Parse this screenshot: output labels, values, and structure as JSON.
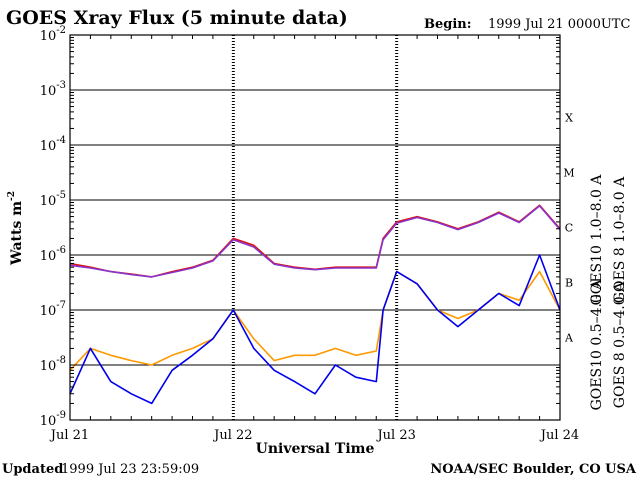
{
  "header": {
    "title": "GOES Xray Flux (5 minute data)",
    "begin_label": "Begin:",
    "begin_value": "1999 Jul 21 0000UTC"
  },
  "footer": {
    "updated_label": "Updated",
    "updated_value": "1999 Jul 23 23:59:09",
    "credit": "NOAA/SEC Boulder, CO USA"
  },
  "colors": {
    "goes8_long": "#dd1111",
    "goes10_long": "#8833cc",
    "goes10_short": "#ff9900",
    "goes8_short": "#0000ee",
    "grid": "#000000"
  },
  "chart_data": {
    "type": "line",
    "title": "GOES Xray Flux (5 minute data)",
    "xlabel": "Universal Time",
    "ylabel": "Watts m",
    "ylabel_exp": "-2",
    "yscale": "log",
    "ylim": [
      1e-09,
      0.01
    ],
    "xlim": [
      "1999-07-21T00:00",
      "1999-07-24T00:00"
    ],
    "x_ticks": [
      "Jul 21",
      "Jul 22",
      "Jul 23",
      "Jul 24"
    ],
    "y_ticks": [
      {
        "base": "10",
        "exp": "-9"
      },
      {
        "base": "10",
        "exp": "-8"
      },
      {
        "base": "10",
        "exp": "-7"
      },
      {
        "base": "10",
        "exp": "-6"
      },
      {
        "base": "10",
        "exp": "-5"
      },
      {
        "base": "10",
        "exp": "-4"
      },
      {
        "base": "10",
        "exp": "-3"
      },
      {
        "base": "10",
        "exp": "-2"
      }
    ],
    "flare_classes": [
      "X",
      "M",
      "C",
      "B",
      "A"
    ],
    "grid": true,
    "legend_position": "right",
    "legend": [
      "GOES10 1.0–8.0 A",
      "GOES 8 1.0–8.0 A",
      "GOES10 0.5–4.0 A",
      "GOES 8 0.5–4.0 A"
    ],
    "x": [
      "1999-07-21T00:00",
      "1999-07-21T03:00",
      "1999-07-21T06:00",
      "1999-07-21T09:00",
      "1999-07-21T12:00",
      "1999-07-21T15:00",
      "1999-07-21T18:00",
      "1999-07-21T21:00",
      "1999-07-22T00:00",
      "1999-07-22T03:00",
      "1999-07-22T06:00",
      "1999-07-22T09:00",
      "1999-07-22T12:00",
      "1999-07-22T15:00",
      "1999-07-22T18:00",
      "1999-07-22T21:00",
      "1999-07-22T22:00",
      "1999-07-23T00:00",
      "1999-07-23T03:00",
      "1999-07-23T06:00",
      "1999-07-23T09:00",
      "1999-07-23T12:00",
      "1999-07-23T15:00",
      "1999-07-23T18:00",
      "1999-07-23T21:00",
      "1999-07-24T00:00"
    ],
    "series": [
      {
        "name": "GOES 8 1.0–8.0 A",
        "color": "#dd1111",
        "values": [
          7e-07,
          6e-07,
          5e-07,
          4.5e-07,
          4e-07,
          5e-07,
          6e-07,
          8e-07,
          2e-06,
          1.5e-06,
          7e-07,
          6e-07,
          5.5e-07,
          6e-07,
          6e-07,
          6e-07,
          2e-06,
          4e-06,
          5e-06,
          4e-06,
          3e-06,
          4e-06,
          6e-06,
          4e-06,
          8e-06,
          3e-06
        ]
      },
      {
        "name": "GOES10 1.0–8.0 A",
        "color": "#8833cc",
        "values": [
          6.5e-07,
          5.8e-07,
          5e-07,
          4.4e-07,
          4e-07,
          4.8e-07,
          5.8e-07,
          7.8e-07,
          1.9e-06,
          1.4e-06,
          6.8e-07,
          5.8e-07,
          5.4e-07,
          5.8e-07,
          5.8e-07,
          5.8e-07,
          1.9e-06,
          3.8e-06,
          4.8e-06,
          3.9e-06,
          2.9e-06,
          3.9e-06,
          5.8e-06,
          3.9e-06,
          7.8e-06,
          2.9e-06
        ]
      },
      {
        "name": "GOES10 0.5–4.0 A",
        "color": "#ff9900",
        "values": [
          8e-09,
          2e-08,
          1.5e-08,
          1.2e-08,
          1e-08,
          1.5e-08,
          2e-08,
          3e-08,
          1e-07,
          3e-08,
          1.2e-08,
          1.5e-08,
          1.5e-08,
          2e-08,
          1.5e-08,
          1.8e-08,
          1e-07,
          5e-07,
          3e-07,
          1e-07,
          7e-08,
          1e-07,
          2e-07,
          1.5e-07,
          5e-07,
          1e-07
        ]
      },
      {
        "name": "GOES 8 0.5–4.0 A",
        "color": "#0000ee",
        "values": [
          3e-09,
          2e-08,
          5e-09,
          3e-09,
          2e-09,
          8e-09,
          1.5e-08,
          3e-08,
          1e-07,
          2e-08,
          8e-09,
          5e-09,
          3e-09,
          1e-08,
          6e-09,
          5e-09,
          1e-07,
          5e-07,
          3e-07,
          1e-07,
          5e-08,
          1e-07,
          2e-07,
          1.2e-07,
          1e-06,
          1e-07
        ]
      }
    ]
  }
}
